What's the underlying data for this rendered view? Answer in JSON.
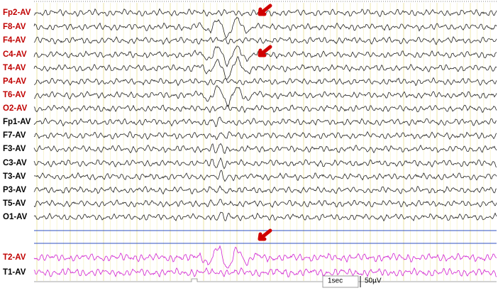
{
  "channels": [
    {
      "label": "Fp2-AV",
      "color": "#c00000"
    },
    {
      "label": "F8-AV",
      "color": "#c00000"
    },
    {
      "label": "F4-AV",
      "color": "#c00000"
    },
    {
      "label": "C4-AV",
      "color": "#c00000"
    },
    {
      "label": "T4-AV",
      "color": "#c00000"
    },
    {
      "label": "P4-AV",
      "color": "#c00000"
    },
    {
      "label": "T6-AV",
      "color": "#c00000"
    },
    {
      "label": "O2-AV",
      "color": "#c00000"
    },
    {
      "label": "Fp1-AV",
      "color": "#000000"
    },
    {
      "label": "F7-AV",
      "color": "#000000"
    },
    {
      "label": "F3-AV",
      "color": "#000000"
    },
    {
      "label": "C3-AV",
      "color": "#000000"
    },
    {
      "label": "T3-AV",
      "color": "#000000"
    },
    {
      "label": "P3-AV",
      "color": "#000000"
    },
    {
      "label": "T5-AV",
      "color": "#000000"
    },
    {
      "label": "O1-AV",
      "color": "#000000"
    },
    {
      "label": "T2-AV",
      "color": "#c00000"
    },
    {
      "label": "T1-AV",
      "color": "#000000"
    }
  ],
  "scale": {
    "time": "1sec",
    "amplitude": "50µV"
  }
}
